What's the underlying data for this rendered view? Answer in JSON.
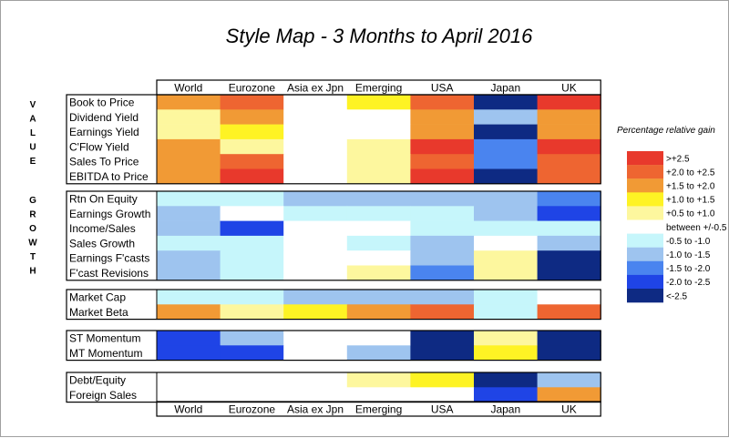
{
  "chart_data": {
    "type": "heatmap",
    "title": "Style Map - 3 Months to April 2016",
    "columns": [
      "World",
      "Eurozone",
      "Asia ex Jpn",
      "Emerging",
      "USA",
      "Japan",
      "UK"
    ],
    "side_labels": [
      {
        "letters": [
          "V",
          "A",
          "L",
          "U",
          "E"
        ]
      },
      {
        "letters": [
          "G",
          "R",
          "O",
          "W",
          "T",
          "H"
        ]
      }
    ],
    "groups": [
      {
        "rows": [
          {
            "label": "Book to Price",
            "values": [
              1.7,
              2.2,
              0,
              1.2,
              2.2,
              -2.8,
              2.7
            ]
          },
          {
            "label": "Dividend Yield",
            "values": [
              0.7,
              1.7,
              0,
              0,
              1.7,
              -1.2,
              1.7
            ]
          },
          {
            "label": "Earnings Yield",
            "values": [
              0.7,
              1.2,
              0,
              0,
              1.7,
              -2.8,
              1.7
            ]
          },
          {
            "label": "C'Flow Yield",
            "values": [
              1.7,
              0.7,
              0,
              0.7,
              2.7,
              -1.7,
              2.7
            ]
          },
          {
            "label": "Sales To Price",
            "values": [
              1.7,
              2.2,
              0,
              0.7,
              2.2,
              -1.7,
              2.2
            ]
          },
          {
            "label": "EBITDA to Price",
            "values": [
              1.7,
              2.7,
              0,
              0.7,
              2.7,
              -2.8,
              2.2
            ]
          }
        ]
      },
      {
        "rows": [
          {
            "label": "Rtn On Equity",
            "values": [
              -0.7,
              -0.7,
              -1.2,
              -1.2,
              -1.2,
              -1.2,
              -1.7
            ]
          },
          {
            "label": "Earnings Growth",
            "values": [
              -1.2,
              0,
              -0.7,
              -0.7,
              -0.7,
              -1.2,
              -2.2
            ]
          },
          {
            "label": "Income/Sales",
            "values": [
              -1.2,
              -2.2,
              0,
              0,
              -0.7,
              -0.7,
              -0.7
            ]
          },
          {
            "label": "Sales Growth",
            "values": [
              -0.7,
              -0.7,
              0,
              -0.7,
              -1.2,
              0,
              -1.2
            ]
          },
          {
            "label": "Earnings F'casts",
            "values": [
              -1.2,
              -0.7,
              0,
              0,
              -1.2,
              0.7,
              -2.8
            ]
          },
          {
            "label": "F'cast Revisions",
            "values": [
              -1.2,
              -0.7,
              0,
              0.7,
              -1.7,
              0.7,
              -2.8
            ]
          }
        ]
      },
      {
        "rows": [
          {
            "label": "Market Cap",
            "values": [
              -0.7,
              -0.7,
              -1.2,
              -1.2,
              -1.2,
              -0.7,
              0
            ]
          },
          {
            "label": "Market Beta",
            "values": [
              1.7,
              0.7,
              1.2,
              1.7,
              2.2,
              -0.7,
              2.2
            ]
          }
        ]
      },
      {
        "rows": [
          {
            "label": "ST Momentum",
            "values": [
              -2.2,
              -1.2,
              0,
              0,
              -2.8,
              0.7,
              -2.8
            ]
          },
          {
            "label": "MT Momentum",
            "values": [
              -2.2,
              -2.2,
              0,
              -1.2,
              -2.8,
              1.2,
              -2.8
            ]
          }
        ]
      },
      {
        "rows": [
          {
            "label": "Debt/Equity",
            "values": [
              0,
              0,
              0,
              0.7,
              1.2,
              -2.8,
              -1.2
            ]
          },
          {
            "label": "Foreign Sales",
            "values": [
              0,
              0,
              0,
              0,
              0,
              -2.2,
              1.7
            ]
          }
        ]
      }
    ],
    "legend": {
      "title": "Percentage relative gain",
      "placement": "right",
      "bins": [
        {
          "label": ">+2.5",
          "color": "#e8392c"
        },
        {
          "label": "+2.0 to +2.5",
          "color": "#ee6531"
        },
        {
          "label": "+1.5 to +2.0",
          "color": "#f19a35"
        },
        {
          "label": "+1.0 to +1.5",
          "color": "#fef324"
        },
        {
          "label": "+0.5 to +1.0",
          "color": "#fdf79e"
        },
        {
          "label": "between +/-0.5",
          "color": "#ffffff"
        },
        {
          "label": "-0.5 to -1.0",
          "color": "#c6f6fb"
        },
        {
          "label": "-1.0 to -1.5",
          "color": "#9ec4ef"
        },
        {
          "label": "-1.5 to -2.0",
          "color": "#4a84ef"
        },
        {
          "label": "-2.0 to -2.5",
          "color": "#1f44e6"
        },
        {
          "label": "<-2.5",
          "color": "#0e2a83"
        }
      ]
    }
  }
}
